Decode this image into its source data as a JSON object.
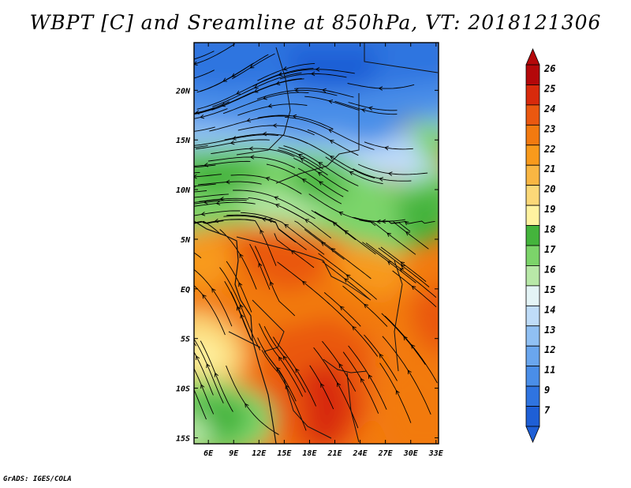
{
  "title": "WBPT [C] and Sreamline at 850hPa, VT: 2018121306",
  "credit": "GrADS: IGES/COLA",
  "colorbar": {
    "labels": [
      "7",
      "9",
      "11",
      "12",
      "13",
      "14",
      "15",
      "16",
      "17",
      "18",
      "19",
      "20",
      "21",
      "22",
      "23",
      "24",
      "25",
      "26"
    ],
    "colors": [
      "#1e5fd6",
      "#2f74e0",
      "#4a8ee8",
      "#6aa6ee",
      "#90c0f3",
      "#bfdcf8",
      "#e4f4f6",
      "#b8e8a8",
      "#7cd46a",
      "#44b43c",
      "#fff2a0",
      "#fbd878",
      "#f9b643",
      "#f89a1c",
      "#f27a10",
      "#ea5810",
      "#d82a0c",
      "#b4080a"
    ]
  },
  "chart_data": {
    "type": "heatmap",
    "title": "WBPT [C] and Sreamline at 850hPa, VT: 2018121306",
    "x_ticks": [
      "6E",
      "9E",
      "12E",
      "15E",
      "18E",
      "21E",
      "24E",
      "27E",
      "30E",
      "33E"
    ],
    "x_values": [
      6,
      9,
      12,
      15,
      18,
      21,
      24,
      27,
      30,
      33
    ],
    "y_ticks": [
      "20N",
      "15N",
      "10N",
      "5N",
      "EQ",
      "5S",
      "10S",
      "15S"
    ],
    "y_values": [
      20,
      15,
      10,
      5,
      0,
      -5,
      -10,
      -15
    ],
    "xlim": [
      4.3,
      33.3
    ],
    "ylim": [
      -15.6,
      24.8
    ],
    "colorscale_levels": [
      7,
      9,
      11,
      12,
      13,
      14,
      15,
      16,
      17,
      18,
      19,
      20,
      21,
      22,
      23,
      24,
      25,
      26
    ],
    "approx_values_by_latitude": [
      {
        "lat": 22,
        "wbpt": 11
      },
      {
        "lat": 17,
        "wbpt": 13
      },
      {
        "lat": 12,
        "wbpt": 16
      },
      {
        "lat": 8,
        "wbpt": 17
      },
      {
        "lat": 4,
        "wbpt": 22
      },
      {
        "lat": 0,
        "wbpt": 23
      },
      {
        "lat": -5,
        "wbpt": 23
      },
      {
        "lat": -10,
        "wbpt": 24
      },
      {
        "lat": -15,
        "wbpt": 24
      }
    ]
  }
}
